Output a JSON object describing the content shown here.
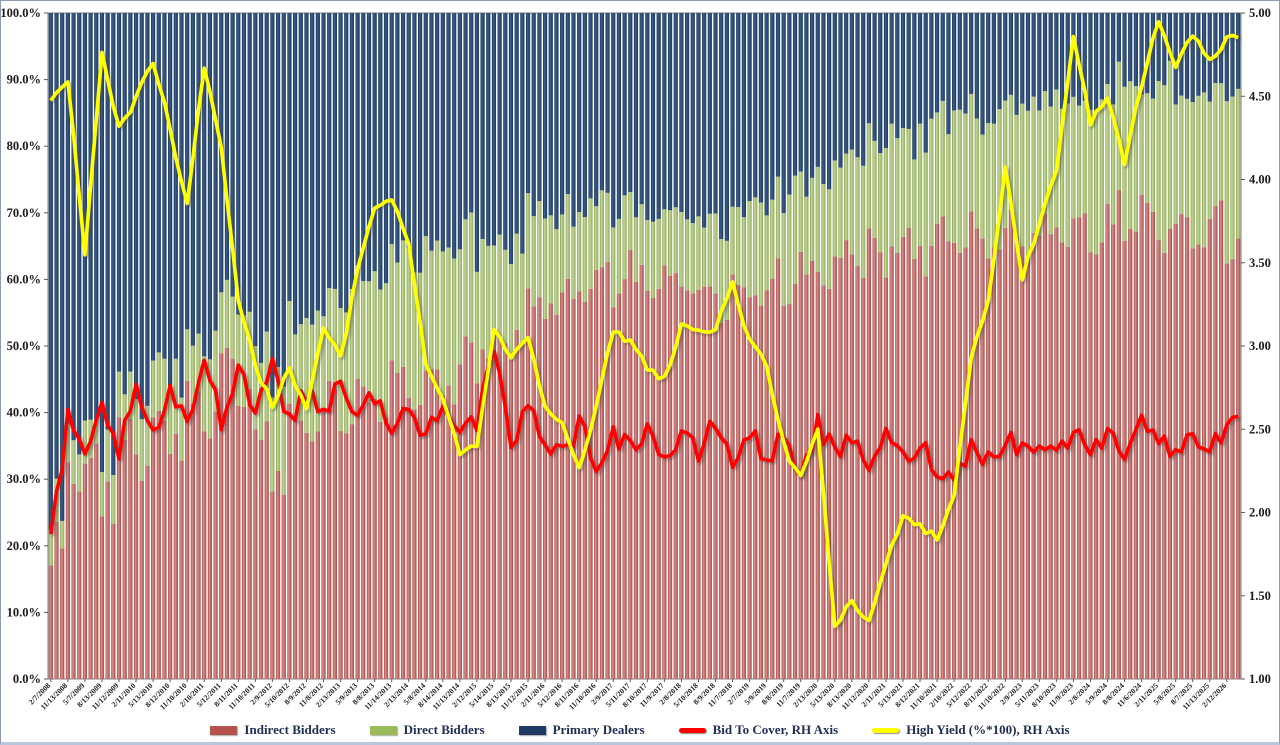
{
  "chart": {
    "background": "#ffffff",
    "border_color": "#8f9bb0",
    "plot_border_color": "#7f7f7f",
    "axis_text_color": "#1a1a1a",
    "legend_text_color": "#1f2d50"
  },
  "chart_data": {
    "type": "combo",
    "bar_mode": "stacked-100-percent",
    "title": "",
    "xlabel": "",
    "ylabel_left": "",
    "ylabel_right": "",
    "grid": false,
    "legend_position": "bottom-center",
    "x_labels": [
      "2/7/2008",
      "11/13/2008",
      "5/7/2009",
      "8/13/2009",
      "11/12/2009",
      "2/11/2010",
      "5/13/2010",
      "8/12/2010",
      "11/10/2010",
      "2/10/2011",
      "5/12/2011",
      "8/11/2011",
      "11/10/2011",
      "2/9/2012",
      "5/10/2012",
      "8/9/2012",
      "11/8/2012",
      "2/13/2013",
      "5/9/2013",
      "8/8/2013",
      "11/14/2013",
      "2/13/2014",
      "5/8/2014",
      "8/14/2014",
      "11/13/2014",
      "2/12/2015",
      "5/14/2015",
      "8/13/2015",
      "11/12/2015",
      "2/11/2016",
      "5/12/2016",
      "8/11/2016",
      "11/10/2016",
      "2/9/2017",
      "5/11/2017",
      "8/10/2017",
      "11/9/2017",
      "2/8/2018",
      "5/10/2018",
      "8/9/2018",
      "11/7/2018",
      "2/7/2019",
      "5/9/2019",
      "8/8/2019",
      "11/7/2019",
      "2/13/2020",
      "5/13/2020",
      "8/13/2020",
      "11/12/2020",
      "2/11/2021",
      "5/13/2021",
      "8/12/2021",
      "11/10/2021",
      "2/10/2022",
      "5/12/2022",
      "8/11/2022",
      "11/10/2022",
      "2/9/2023",
      "5/11/2023",
      "8/10/2023",
      "11/9/2023",
      "2/8/2024",
      "5/9/2024",
      "8/8/2024",
      "11/6/2024",
      "2/11/2025",
      "5/8/2025",
      "8/7/2025",
      "11/13/2025",
      "2/12/2026"
    ],
    "bars_per_label": 3,
    "left_axis": {
      "min": 0,
      "max": 100,
      "format": "percent",
      "ticks": [
        "100.0%",
        "90.0%",
        "80.0%",
        "70.0%",
        "60.0%",
        "50.0%",
        "40.0%",
        "30.0%",
        "20.0%",
        "10.0%",
        "0.0%"
      ]
    },
    "right_axis": {
      "min": 1,
      "max": 5,
      "ticks": [
        "5.00",
        "4.50",
        "4.00",
        "3.50",
        "3.00",
        "2.50",
        "2.00",
        "1.50",
        "1.00"
      ]
    },
    "series": [
      {
        "name": "Indirect Bidders",
        "type": "bar",
        "axis": "left",
        "color": "#b5524e",
        "values": [
          21,
          30,
          35,
          28,
          38,
          34,
          42,
          37,
          45,
          40,
          47,
          42,
          36,
          30,
          40,
          35,
          42,
          38,
          44,
          41,
          46,
          43,
          48,
          44,
          50,
          47,
          53,
          50,
          56,
          54,
          59,
          56,
          61,
          58,
          62,
          59,
          63,
          58,
          61,
          56,
          59,
          57,
          61,
          58,
          62,
          60,
          64,
          61,
          65,
          62,
          66,
          63,
          67,
          64,
          68,
          64,
          69,
          65,
          68,
          66,
          70,
          66,
          71,
          67,
          72,
          65,
          70,
          66,
          71,
          64
        ]
      },
      {
        "name": "Direct Bidders",
        "type": "bar",
        "axis": "left",
        "color": "#9bbb59",
        "values": [
          5,
          6,
          5,
          7,
          6,
          9,
          8,
          10,
          9,
          12,
          10,
          13,
          12,
          15,
          14,
          17,
          15,
          19,
          17,
          20,
          18,
          21,
          19,
          22,
          18,
          16,
          14,
          15,
          13,
          14,
          12,
          13,
          11,
          12,
          10,
          11,
          9,
          12,
          10,
          13,
          11,
          14,
          12,
          15,
          13,
          16,
          14,
          17,
          15,
          18,
          16,
          19,
          17,
          20,
          17,
          20,
          18,
          21,
          18,
          21,
          17,
          22,
          18,
          22,
          16,
          24,
          19,
          23,
          18,
          23
        ]
      },
      {
        "name": "Primary Dealers",
        "type": "bar",
        "axis": "left",
        "color": "#1f3b64",
        "values": [
          74,
          64,
          60,
          65,
          56,
          57,
          50,
          53,
          46,
          48,
          43,
          45,
          52,
          55,
          46,
          48,
          43,
          43,
          39,
          39,
          36,
          36,
          33,
          34,
          32,
          37,
          33,
          35,
          31,
          32,
          29,
          31,
          28,
          30,
          28,
          30,
          28,
          30,
          29,
          31,
          30,
          29,
          27,
          27,
          25,
          24,
          22,
          22,
          20,
          20,
          18,
          18,
          16,
          16,
          15,
          16,
          13,
          14,
          14,
          13,
          13,
          12,
          11,
          11,
          12,
          11,
          11,
          11,
          11,
          13
        ]
      },
      {
        "name": "Bid To Cover, RH Axis",
        "type": "line",
        "axis": "right",
        "color": "#ff0000",
        "values": [
          1.85,
          2.55,
          2.3,
          2.62,
          2.38,
          2.7,
          2.45,
          2.72,
          2.5,
          2.95,
          2.55,
          2.9,
          2.6,
          2.92,
          2.55,
          2.72,
          2.6,
          2.82,
          2.55,
          2.72,
          2.48,
          2.62,
          2.45,
          2.7,
          2.5,
          2.55,
          2.95,
          2.4,
          2.62,
          2.45,
          2.35,
          2.52,
          2.3,
          2.48,
          2.38,
          2.52,
          2.32,
          2.45,
          2.35,
          2.55,
          2.3,
          2.48,
          2.32,
          2.45,
          2.25,
          2.52,
          2.35,
          2.42,
          2.3,
          2.45,
          2.32,
          2.4,
          2.28,
          2.18,
          2.42,
          2.32,
          2.45,
          2.38,
          2.42,
          2.35,
          2.48,
          2.4,
          2.45,
          2.38,
          2.6,
          2.42,
          2.35,
          2.48,
          2.4,
          2.52
        ]
      },
      {
        "name": "High Yield (%*100), RH Axis",
        "type": "line",
        "axis": "right",
        "color": "#ffff00",
        "values": [
          4.45,
          4.6,
          3.55,
          4.74,
          4.3,
          4.48,
          4.72,
          4.3,
          3.84,
          4.68,
          4.2,
          3.28,
          2.88,
          2.64,
          2.88,
          2.6,
          3.12,
          2.92,
          3.45,
          3.84,
          3.9,
          3.6,
          2.9,
          2.7,
          2.35,
          2.42,
          3.08,
          2.95,
          3.05,
          2.65,
          2.55,
          2.25,
          2.62,
          3.1,
          3.02,
          2.88,
          2.8,
          3.12,
          3.1,
          3.08,
          3.4,
          3.02,
          2.88,
          2.4,
          2.2,
          2.48,
          1.33,
          1.45,
          1.35,
          1.68,
          2.0,
          1.92,
          1.85,
          2.1,
          2.95,
          3.25,
          4.08,
          3.4,
          3.75,
          4.05,
          4.85,
          4.35,
          4.48,
          4.1,
          4.58,
          4.95,
          4.68,
          4.88,
          4.7,
          4.85
        ]
      }
    ]
  }
}
